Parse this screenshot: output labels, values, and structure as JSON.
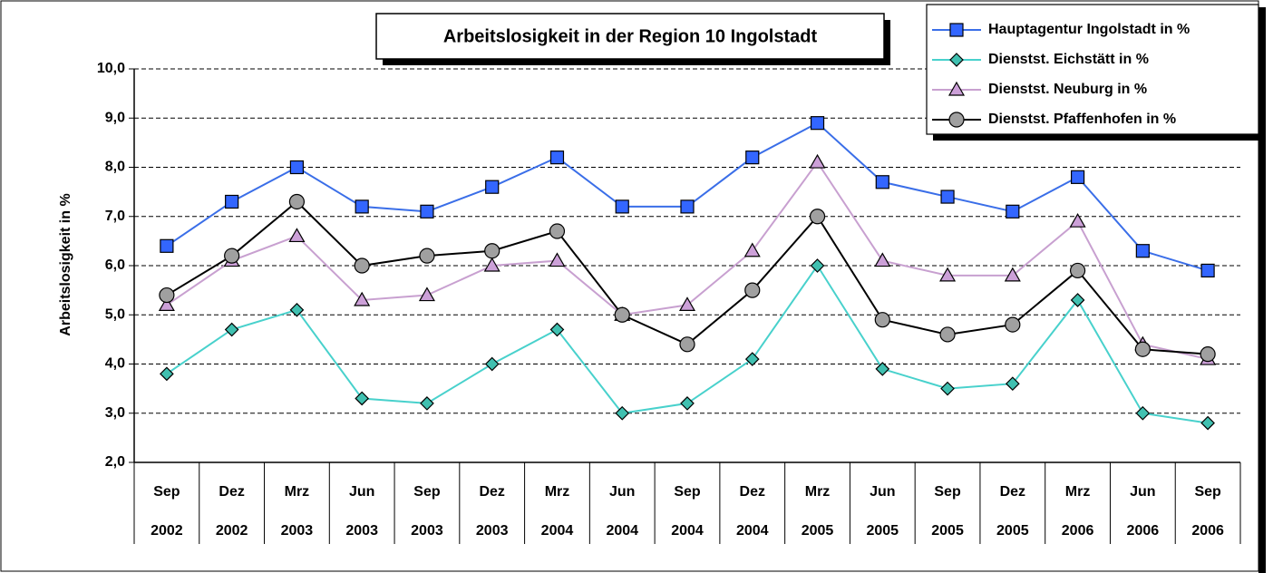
{
  "chart_data": {
    "type": "line",
    "title": "Arbeitslosigkeit in der Region 10 Ingolstadt",
    "y_label": "Arbeitslosigkeit in %",
    "categories": [
      [
        "Sep",
        "2002"
      ],
      [
        "Dez",
        "2002"
      ],
      [
        "Mrz",
        "2003"
      ],
      [
        "Jun",
        "2003"
      ],
      [
        "Sep",
        "2003"
      ],
      [
        "Dez",
        "2003"
      ],
      [
        "Mrz",
        "2004"
      ],
      [
        "Jun",
        "2004"
      ],
      [
        "Sep",
        "2004"
      ],
      [
        "Dez",
        "2004"
      ],
      [
        "Mrz",
        "2005"
      ],
      [
        "Jun",
        "2005"
      ],
      [
        "Sep",
        "2005"
      ],
      [
        "Dez",
        "2005"
      ],
      [
        "Mrz",
        "2006"
      ],
      [
        "Jun",
        "2006"
      ],
      [
        "Sep",
        "2006"
      ]
    ],
    "series": [
      {
        "name": "Hauptagentur Ingolstadt in %",
        "color": "#3a6ee8",
        "marker": "square",
        "marker_color": "#3366ff",
        "values": [
          6.4,
          7.3,
          8.0,
          7.2,
          7.1,
          7.6,
          8.2,
          7.2,
          7.2,
          8.2,
          8.9,
          7.7,
          7.4,
          7.1,
          7.8,
          6.3,
          5.9
        ]
      },
      {
        "name": "Dienstst. Eichstätt in %",
        "color": "#48d1cc",
        "marker": "diamond",
        "marker_color": "#40c0b0",
        "values": [
          3.8,
          4.7,
          5.1,
          3.3,
          3.2,
          4.0,
          4.7,
          3.0,
          3.2,
          4.1,
          6.0,
          3.9,
          3.5,
          3.6,
          5.3,
          3.0,
          2.8
        ]
      },
      {
        "name": "Dienstst. Neuburg in %",
        "color": "#c8a0d0",
        "marker": "triangle",
        "marker_color": "#cca0d8",
        "values": [
          5.2,
          6.1,
          6.6,
          5.3,
          5.4,
          6.0,
          6.1,
          5.0,
          5.2,
          6.3,
          8.1,
          6.1,
          5.8,
          5.8,
          6.9,
          4.4,
          4.1
        ]
      },
      {
        "name": "Dienstst. Pfaffenhofen in %",
        "color": "#000000",
        "marker": "circle",
        "marker_color": "#a0a0a0",
        "values": [
          5.4,
          6.2,
          7.3,
          6.0,
          6.2,
          6.3,
          6.7,
          5.0,
          4.4,
          5.5,
          7.0,
          4.9,
          4.6,
          4.8,
          5.9,
          4.3,
          4.2
        ]
      }
    ],
    "ylim": [
      2,
      10
    ],
    "yticks": [
      {
        "value": 2,
        "label": "2,0"
      },
      {
        "value": 3,
        "label": "3,0"
      },
      {
        "value": 4,
        "label": "4,0"
      },
      {
        "value": 5,
        "label": "5,0"
      },
      {
        "value": 6,
        "label": "6,0"
      },
      {
        "value": 7,
        "label": "7,0"
      },
      {
        "value": 8,
        "label": "8,0"
      },
      {
        "value": 9,
        "label": "9,0"
      },
      {
        "value": 10,
        "label": "10,0"
      }
    ],
    "grid": true,
    "legend": "top-right"
  }
}
